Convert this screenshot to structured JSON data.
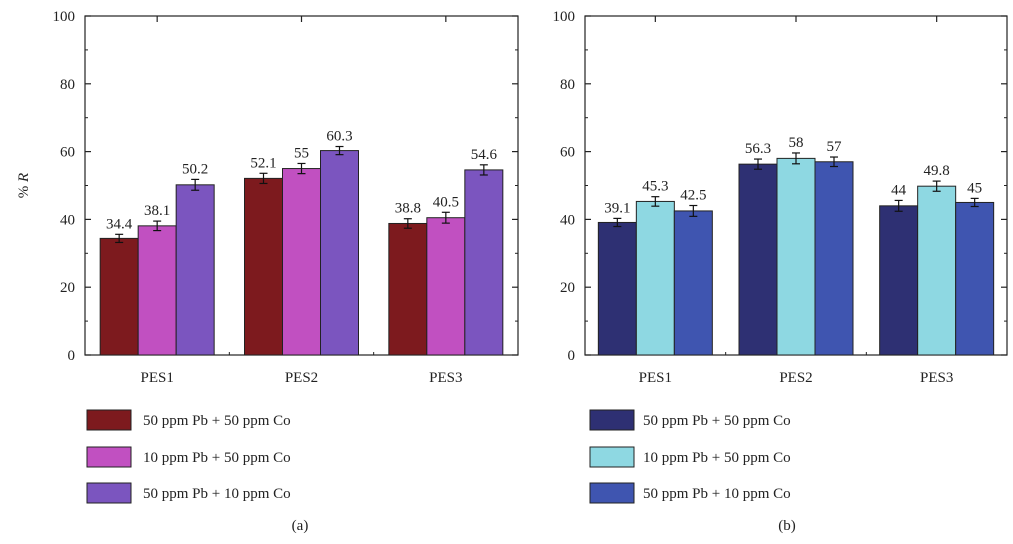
{
  "chart_data": [
    {
      "type": "bar",
      "panel_label": "(a)",
      "categories": [
        "PES1",
        "PES2",
        "PES3"
      ],
      "series": [
        {
          "name": "50 ppm Pb + 50 ppm Co",
          "values": [
            34.4,
            52.1,
            38.8
          ],
          "errors": [
            1.2,
            1.5,
            1.4
          ],
          "color": "#7d1a1e"
        },
        {
          "name": "10 ppm Pb + 50 ppm Co",
          "values": [
            38.1,
            55,
            40.5
          ],
          "errors": [
            1.4,
            1.5,
            1.6
          ],
          "color": "#c150c1"
        },
        {
          "name": "50 ppm Pb + 10 ppm Co",
          "values": [
            50.2,
            60.3,
            54.6
          ],
          "errors": [
            1.6,
            1.2,
            1.5
          ],
          "color": "#7b55bf"
        }
      ],
      "data_labels": [
        [
          "34.4",
          "52.1",
          "38.8"
        ],
        [
          "38.1",
          "55",
          "40.5"
        ],
        [
          "50.2",
          "60.3",
          "54.6"
        ]
      ],
      "yticks": [
        "0",
        "20",
        "40",
        "60",
        "80",
        "100"
      ],
      "ylim": [
        0,
        100
      ],
      "ylabel_prefix": "% ",
      "ylabel_var": "R",
      "xlabel": "",
      "legend_placement": "bottom"
    },
    {
      "type": "bar",
      "panel_label": "(b)",
      "categories": [
        "PES1",
        "PES2",
        "PES3"
      ],
      "series": [
        {
          "name": "50 ppm Pb + 50 ppm Co",
          "values": [
            39.1,
            56.3,
            44
          ],
          "errors": [
            1.2,
            1.5,
            1.6
          ],
          "color": "#2e3073"
        },
        {
          "name": "10 ppm Pb + 50 ppm Co",
          "values": [
            45.3,
            58,
            49.8
          ],
          "errors": [
            1.4,
            1.6,
            1.5
          ],
          "color": "#8ed8e2"
        },
        {
          "name": "50 ppm Pb + 10 ppm Co",
          "values": [
            42.5,
            57,
            45
          ],
          "errors": [
            1.6,
            1.4,
            1.2
          ],
          "color": "#3f55b0"
        }
      ],
      "data_labels": [
        [
          "39.1",
          "56.3",
          "44"
        ],
        [
          "45.3",
          "58",
          "49.8"
        ],
        [
          "42.5",
          "57",
          "45"
        ]
      ],
      "yticks": [
        "0",
        "20",
        "40",
        "60",
        "80",
        "100"
      ],
      "ylim": [
        0,
        100
      ],
      "ylabel_prefix": "",
      "ylabel_var": "",
      "xlabel": "",
      "legend_placement": "bottom"
    }
  ]
}
